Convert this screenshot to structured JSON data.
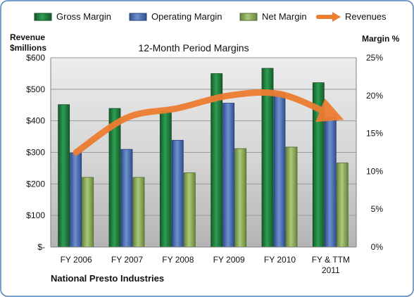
{
  "chart_data": {
    "type": "bar",
    "title": "12-Month Period Margins",
    "categories": [
      "FY 2006",
      "FY 2007",
      "FY 2008",
      "FY 2009",
      "FY 2010",
      "FY & TTM 2011"
    ],
    "series": [
      {
        "name": "Gross Margin",
        "axis": "right",
        "color": "#1e7a3c",
        "values": [
          18.8,
          18.3,
          17.9,
          22.9,
          23.6,
          21.7
        ]
      },
      {
        "name": "Operating Margin",
        "axis": "right",
        "color": "#4a6fb5",
        "values": [
          12.4,
          12.9,
          14.1,
          19.0,
          20.4,
          17.1
        ]
      },
      {
        "name": "Net Margin",
        "axis": "right",
        "color": "#8fb15a",
        "values": [
          9.2,
          9.2,
          9.8,
          13.0,
          13.2,
          11.1
        ]
      },
      {
        "name": "Revenues",
        "axis": "left",
        "type": "line",
        "color": "#ed7d31",
        "values": [
          300,
          410,
          440,
          480,
          485,
          420
        ]
      }
    ],
    "ylabel_left": "Revenue $millions",
    "ylabel_right": "Margin %",
    "ylim_left": [
      0,
      600
    ],
    "ylim_right": [
      0,
      25
    ],
    "yticks_left": [
      "$-",
      "$100",
      "$200",
      "$300",
      "$400",
      "$500",
      "$600"
    ],
    "yticks_right": [
      "0%",
      "5%",
      "10%",
      "15%",
      "20%",
      "25%"
    ],
    "grid": true,
    "legend_position": "top"
  },
  "legend": {
    "gross": "Gross Margin",
    "operating": "Operating Margin",
    "net": "Net Margin",
    "revenues": "Revenues"
  },
  "labels": {
    "left_axis_line1": "Revenue",
    "left_axis_line2": "$millions",
    "right_axis": "Margin %",
    "title": "12-Month Period Margins",
    "company": "National Presto Industries"
  },
  "colors": {
    "frame_border": "#4f81bd",
    "plot_bg_top": "#e6e6e6",
    "plot_bg_bottom": "#bfbfbf"
  }
}
